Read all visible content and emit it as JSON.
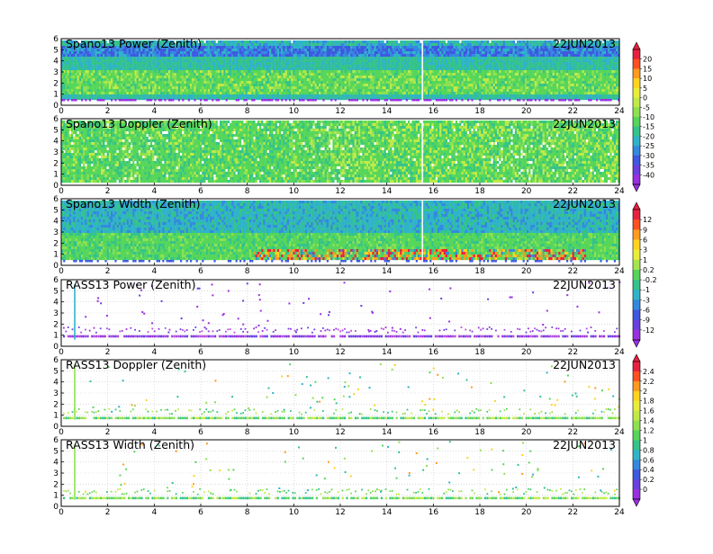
{
  "figure": {
    "date": "22JUN2013"
  },
  "chart_data": [
    {
      "type": "heatmap",
      "title": "Spano13 Power (Zenith)",
      "date_label": "22JUN2013",
      "xlim": [
        0,
        24
      ],
      "ylim": [
        0,
        6
      ],
      "x_ticks": [
        "0",
        "2",
        "4",
        "6",
        "8",
        "10",
        "12",
        "14",
        "16",
        "18",
        "20",
        "22",
        "24"
      ],
      "y_ticks": [
        "0",
        "1",
        "2",
        "3",
        "4",
        "5",
        "6"
      ],
      "colorbar_group": "spano-power-doppler",
      "grid": true
    },
    {
      "type": "heatmap",
      "title": "Spano13 Doppler (Zenith)",
      "date_label": "22JUN2013",
      "xlim": [
        0,
        24
      ],
      "ylim": [
        0,
        6
      ],
      "x_ticks": [
        "0",
        "2",
        "4",
        "6",
        "8",
        "10",
        "12",
        "14",
        "16",
        "18",
        "20",
        "22",
        "24"
      ],
      "y_ticks": [
        "0",
        "1",
        "2",
        "3",
        "4",
        "5",
        "6"
      ],
      "colorbar_group": "spano-power-doppler",
      "grid": true
    },
    {
      "type": "heatmap",
      "title": "Spano13 Width (Zenith)",
      "date_label": "22JUN2013",
      "xlim": [
        0,
        24
      ],
      "ylim": [
        0,
        6
      ],
      "x_ticks": [
        "0",
        "2",
        "4",
        "6",
        "8",
        "10",
        "12",
        "14",
        "16",
        "18",
        "20",
        "22",
        "24"
      ],
      "y_ticks": [
        "0",
        "1",
        "2",
        "3",
        "4",
        "5",
        "6"
      ],
      "colorbar_group": "width-rass-power",
      "grid": true
    },
    {
      "type": "scatter",
      "title": "RASS13 Power (Zenith)",
      "date_label": "22JUN2013",
      "xlim": [
        0,
        24
      ],
      "ylim": [
        0,
        6
      ],
      "x_ticks": [
        "0",
        "2",
        "4",
        "6",
        "8",
        "10",
        "12",
        "14",
        "16",
        "18",
        "20",
        "22",
        "24"
      ],
      "y_ticks": [
        "0",
        "1",
        "2",
        "3",
        "4",
        "5",
        "6"
      ],
      "colorbar_group": "width-rass-power",
      "grid": true
    },
    {
      "type": "scatter",
      "title": "RASS13 Doppler (Zenith)",
      "date_label": "22JUN2013",
      "xlim": [
        0,
        24
      ],
      "ylim": [
        0,
        6
      ],
      "x_ticks": [
        "0",
        "2",
        "4",
        "6",
        "8",
        "10",
        "12",
        "14",
        "16",
        "18",
        "20",
        "22",
        "24"
      ],
      "y_ticks": [
        "0",
        "1",
        "2",
        "3",
        "4",
        "5",
        "6"
      ],
      "colorbar_group": "rass-doppler-width",
      "grid": true
    },
    {
      "type": "scatter",
      "title": "RASS13 Width (Zenith)",
      "date_label": "22JUN2013",
      "xlim": [
        0,
        24
      ],
      "ylim": [
        0,
        6
      ],
      "x_ticks": [
        "0",
        "2",
        "4",
        "6",
        "8",
        "10",
        "12",
        "14",
        "16",
        "18",
        "20",
        "22",
        "24"
      ],
      "y_ticks": [
        "0",
        "1",
        "2",
        "3",
        "4",
        "5",
        "6"
      ],
      "colorbar_group": "rass-doppler-width",
      "grid": true
    }
  ],
  "colorbars": [
    {
      "group": "spano-power-doppler",
      "labels": [
        "20",
        "15",
        "10",
        "5",
        "0",
        "-5",
        "-10",
        "-15",
        "-20",
        "-25",
        "-30",
        "-35",
        "-40"
      ],
      "colors": [
        "#e8213f",
        "#ff5020",
        "#ff9a1e",
        "#ffd21e",
        "#e9ec3a",
        "#c0ea48",
        "#8ee04f",
        "#55d65a",
        "#34c38a",
        "#2fb3c8",
        "#3488e0",
        "#3e58e0",
        "#6a3fe0",
        "#9a30e0"
      ]
    },
    {
      "group": "width-rass-power",
      "labels": [
        "12",
        "9",
        "6",
        "3",
        "1",
        "0.2",
        "-0.2",
        "-1",
        "-3",
        "-6",
        "-9",
        "-12"
      ],
      "colors": [
        "#e8213f",
        "#ff5020",
        "#ff9a1e",
        "#ffd21e",
        "#e9ec3a",
        "#a6e44c",
        "#55d65a",
        "#34c38a",
        "#2fb3c8",
        "#3488e0",
        "#3e58e0",
        "#6a3fe0",
        "#9a30e0"
      ]
    },
    {
      "group": "rass-doppler-width",
      "labels": [
        "2.4",
        "2.2",
        "2",
        "1.8",
        "1.6",
        "1.4",
        "1.2",
        "1",
        "0.8",
        "0.6",
        "0.4",
        "0.2",
        "0"
      ],
      "colors": [
        "#e8213f",
        "#ff5020",
        "#ff9a1e",
        "#ffd21e",
        "#e9ec3a",
        "#c0ea48",
        "#8ee04f",
        "#55d65a",
        "#34c38a",
        "#2fb3c8",
        "#3488e0",
        "#3e58e0",
        "#6a3fe0",
        "#9a30e0"
      ]
    }
  ]
}
